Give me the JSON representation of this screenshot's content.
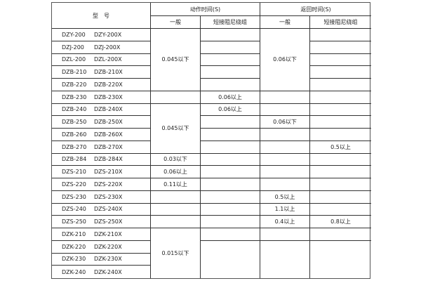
{
  "header": {
    "model": "型　号",
    "action_time": "动作时间(S)",
    "return_time": "返回时间(S)",
    "general": "一般",
    "short_damping": "短接阻尼绕组"
  },
  "rows": [
    {
      "model": [
        "DZY-200",
        "DZY-200X"
      ],
      "action_general": "0.045以下",
      "action_short": "",
      "return_general": "0.06以下",
      "return_short": ""
    },
    {
      "model": [
        "DZJ-200",
        "DZJ-200X"
      ],
      "action_short": "",
      "return_short": ""
    },
    {
      "model": [
        "DZL-200",
        "DZL-200X"
      ],
      "action_short": "",
      "return_short": ""
    },
    {
      "model": [
        "DZB-210",
        "DZB-210X"
      ],
      "action_short": "",
      "return_short": ""
    },
    {
      "model": [
        "DZB-220",
        "DZB-220X"
      ],
      "action_short": "",
      "return_short": ""
    },
    {
      "model": [
        "DZB-230",
        "DZB-230X"
      ],
      "action_general": "",
      "action_short": "0.06以上",
      "return_general": "",
      "return_short": ""
    },
    {
      "model": [
        "DZB-240",
        "DZB-240X"
      ],
      "action_general": "0.045以下",
      "action_short": "0.06以上",
      "return_general": "",
      "return_short": ""
    },
    {
      "model": [
        "DZB-250",
        "DZB-250X"
      ],
      "action_short": "",
      "return_general": "0.06以下",
      "return_short": ""
    },
    {
      "model": [
        "DZB-260",
        "DZB-260X"
      ],
      "action_short": "",
      "return_general": "",
      "return_short": ""
    },
    {
      "model": [
        "DZB-270",
        "DZB-270X"
      ],
      "action_short": "",
      "return_general": "",
      "return_short": "0.5以上"
    },
    {
      "model": [
        "DZB-284",
        "DZB-284X"
      ],
      "action_general": "0.03以下",
      "action_short": "",
      "return_general": "",
      "return_short": ""
    },
    {
      "model": [
        "DZS-210",
        "DZS-210X"
      ],
      "action_general": "0.06以上",
      "action_short": "",
      "return_general": "",
      "return_short": ""
    },
    {
      "model": [
        "DZS-220",
        "DZS-220X"
      ],
      "action_general": "0.11以上",
      "action_short": "",
      "return_general": "",
      "return_short": ""
    },
    {
      "model": [
        "DZS-230",
        "DZS-230X"
      ],
      "action_general": "",
      "action_short": "",
      "return_general": "0.5以上",
      "return_short": ""
    },
    {
      "model": [
        "DZS-240",
        "DZS-240X"
      ],
      "action_general": "",
      "action_short": "",
      "return_general": "1.1以上",
      "return_short": ""
    },
    {
      "model": [
        "DZS-250",
        "DZS-250X"
      ],
      "action_general": "",
      "action_short": "",
      "return_general": "0.4以上",
      "return_short": "0.8以上"
    },
    {
      "model": [
        "DZK-210",
        "DZK-210X"
      ],
      "action_general": "0.015以下",
      "action_short": "",
      "return_general": "",
      "return_short": ""
    },
    {
      "model": [
        "DZK-220",
        "DZK-220X"
      ],
      "action_short": "",
      "return_general": "",
      "return_short": ""
    },
    {
      "model": [
        "DZK-230",
        "DZK-230X"
      ]
    },
    {
      "model": [
        "DZK-240",
        "DZK-240X"
      ]
    }
  ]
}
